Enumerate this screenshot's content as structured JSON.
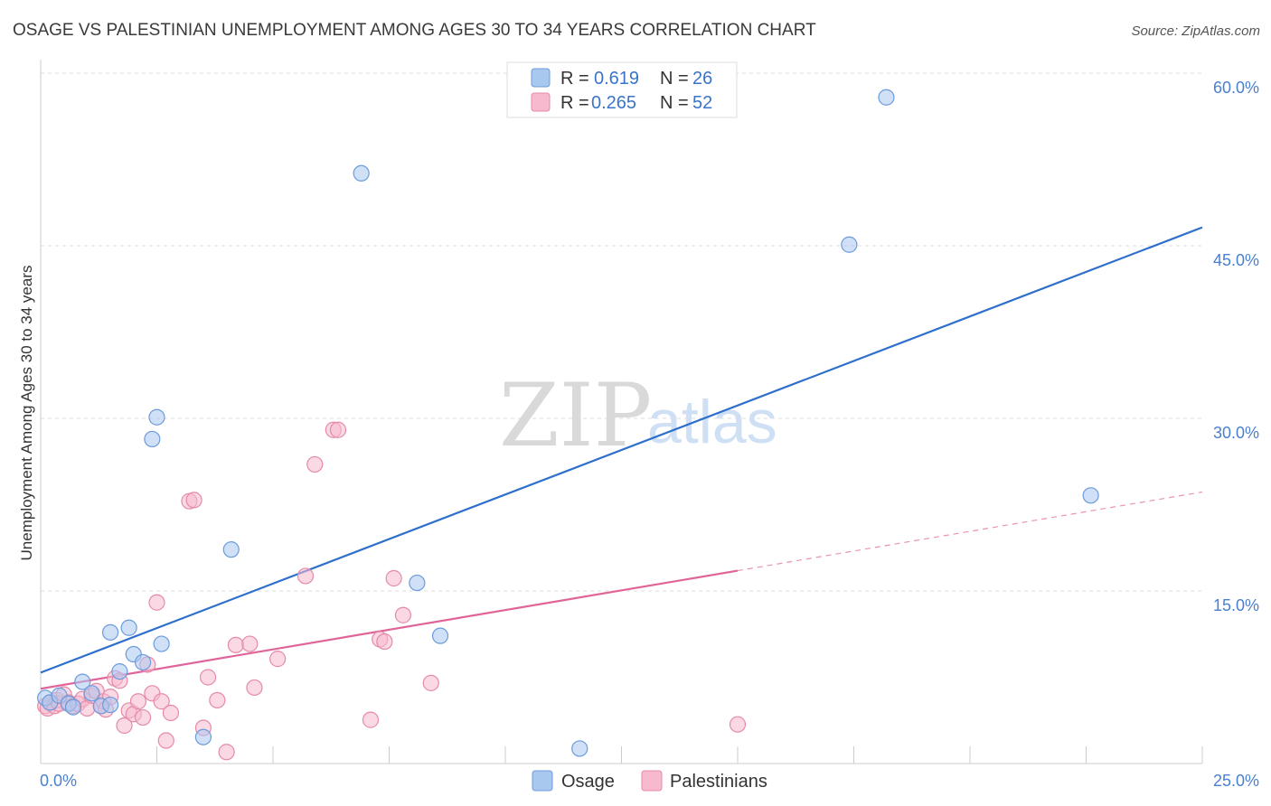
{
  "title": "OSAGE VS PALESTINIAN UNEMPLOYMENT AMONG AGES 30 TO 34 YEARS CORRELATION CHART",
  "source": "Source: ZipAtlas.com",
  "watermark": {
    "zip": "ZIP",
    "atlas": "atlas"
  },
  "colors": {
    "osage_fill": "#a9c8f0",
    "osage_stroke": "#6c9bdc",
    "osage_line": "#2f6fcc",
    "pal_fill": "#f6b9cd",
    "pal_stroke": "#e58aa9",
    "pal_line": "#e0649a",
    "grid": "#dcdcdc",
    "tick_text": "#4a7fd0"
  },
  "legend": {
    "rows": [
      {
        "r_label": "R =",
        "r_value": "0.619",
        "n_label": "N =",
        "n_value": "26",
        "series": "osage"
      },
      {
        "r_label": "R =",
        "r_value": "0.265",
        "n_label": "N =",
        "n_value": "52",
        "series": "pal"
      }
    ]
  },
  "bottom_legend": [
    {
      "label": "Osage",
      "series": "osage"
    },
    {
      "label": "Palestinians",
      "series": "pal"
    }
  ],
  "chart_data": {
    "type": "scatter",
    "title": "OSAGE VS PALESTINIAN UNEMPLOYMENT AMONG AGES 30 TO 34 YEARS CORRELATION CHART",
    "xlabel": "",
    "ylabel": "Unemployment Among Ages 30 to 34 years",
    "xlim": [
      0,
      25
    ],
    "ylim": [
      0,
      60
    ],
    "x_tick_labels": [
      {
        "value": 0,
        "label": "0.0%"
      },
      {
        "value": 25,
        "label": "25.0%"
      }
    ],
    "y_tick_labels": [
      {
        "value": 15,
        "label": "15.0%"
      },
      {
        "value": 30,
        "label": "30.0%"
      },
      {
        "value": 45,
        "label": "45.0%"
      },
      {
        "value": 60,
        "label": "60.0%"
      }
    ],
    "x_minor_ticks": [
      2.5,
      5,
      7.5,
      10,
      12.5,
      15,
      17.5,
      20,
      22.5,
      25
    ],
    "series": [
      {
        "name": "Osage",
        "key": "osage",
        "R": 0.619,
        "N": 26,
        "trend": {
          "x0": 0,
          "y0": 7.9,
          "x1": 25,
          "y1": 46.6,
          "solid_until": 25
        },
        "points": [
          [
            0.1,
            5.7
          ],
          [
            0.2,
            5.3
          ],
          [
            0.4,
            5.9
          ],
          [
            0.6,
            5.2
          ],
          [
            0.7,
            4.9
          ],
          [
            0.9,
            7.1
          ],
          [
            1.1,
            6.1
          ],
          [
            1.3,
            5.0
          ],
          [
            1.5,
            5.1
          ],
          [
            1.5,
            11.4
          ],
          [
            1.7,
            8.0
          ],
          [
            1.9,
            11.8
          ],
          [
            2.0,
            9.5
          ],
          [
            2.2,
            8.8
          ],
          [
            2.4,
            28.2
          ],
          [
            2.5,
            30.1
          ],
          [
            2.6,
            10.4
          ],
          [
            3.5,
            2.3
          ],
          [
            4.1,
            18.6
          ],
          [
            6.9,
            51.3
          ],
          [
            8.1,
            15.7
          ],
          [
            8.6,
            11.1
          ],
          [
            11.6,
            1.3
          ],
          [
            17.4,
            45.1
          ],
          [
            18.2,
            57.9
          ],
          [
            22.6,
            23.3
          ]
        ]
      },
      {
        "name": "Palestinians",
        "key": "pal",
        "R": 0.265,
        "N": 52,
        "trend": {
          "x0": 0,
          "y0": 6.5,
          "x1": 25,
          "y1": 23.6,
          "solid_until": 15
        },
        "points": [
          [
            0.1,
            5.0
          ],
          [
            0.15,
            4.8
          ],
          [
            0.2,
            5.3
          ],
          [
            0.3,
            5.0
          ],
          [
            0.35,
            5.5
          ],
          [
            0.4,
            5.2
          ],
          [
            0.5,
            6.0
          ],
          [
            0.6,
            5.3
          ],
          [
            0.7,
            5.0
          ],
          [
            0.8,
            5.2
          ],
          [
            0.9,
            5.6
          ],
          [
            1.0,
            4.8
          ],
          [
            1.1,
            5.9
          ],
          [
            1.2,
            6.3
          ],
          [
            1.3,
            5.0
          ],
          [
            1.35,
            5.4
          ],
          [
            1.4,
            4.7
          ],
          [
            1.5,
            5.8
          ],
          [
            1.6,
            7.4
          ],
          [
            1.7,
            7.2
          ],
          [
            1.8,
            3.3
          ],
          [
            1.9,
            4.6
          ],
          [
            2.0,
            4.3
          ],
          [
            2.1,
            5.4
          ],
          [
            2.2,
            4.0
          ],
          [
            2.3,
            8.6
          ],
          [
            2.4,
            6.1
          ],
          [
            2.5,
            14.0
          ],
          [
            2.6,
            5.4
          ],
          [
            2.7,
            2.0
          ],
          [
            2.8,
            4.4
          ],
          [
            3.2,
            22.8
          ],
          [
            3.3,
            22.9
          ],
          [
            3.5,
            3.1
          ],
          [
            3.6,
            7.5
          ],
          [
            3.8,
            5.5
          ],
          [
            4.0,
            1.0
          ],
          [
            4.2,
            10.3
          ],
          [
            4.5,
            10.4
          ],
          [
            4.6,
            6.6
          ],
          [
            5.1,
            9.1
          ],
          [
            5.7,
            16.3
          ],
          [
            5.9,
            26.0
          ],
          [
            6.3,
            29.0
          ],
          [
            6.4,
            29.0
          ],
          [
            7.1,
            3.8
          ],
          [
            7.3,
            10.8
          ],
          [
            7.4,
            10.6
          ],
          [
            7.6,
            16.1
          ],
          [
            7.8,
            12.9
          ],
          [
            8.4,
            7.0
          ],
          [
            15.0,
            3.4
          ]
        ]
      }
    ]
  }
}
